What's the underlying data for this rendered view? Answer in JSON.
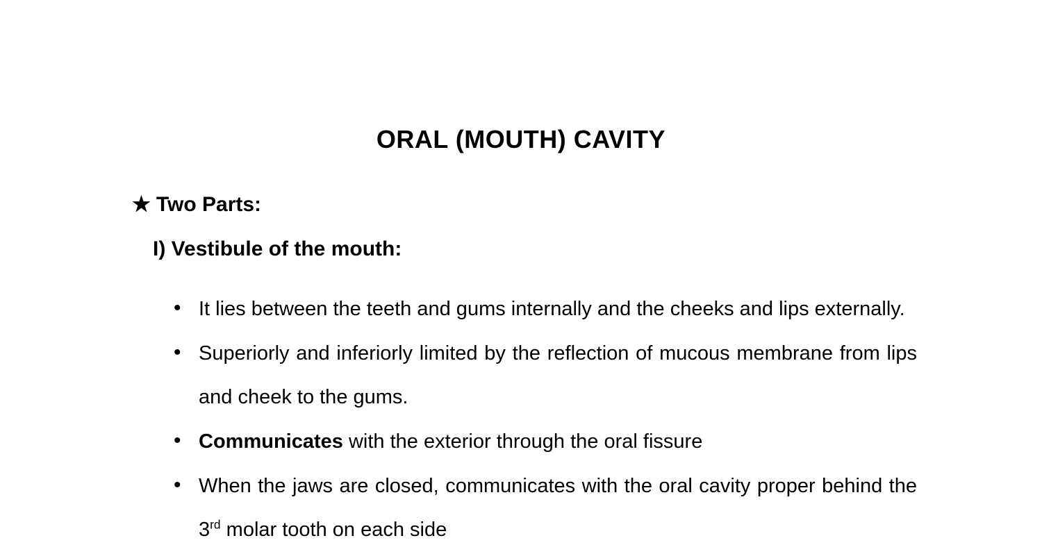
{
  "title": "ORAL (MOUTH) CAVITY",
  "star_label": "Two Parts:",
  "section_heading": "I) Vestibule of the mouth:",
  "bullets": {
    "b1": "It lies between the teeth and gums internally and the cheeks and lips externally.",
    "b2": " Superiorly and inferiorly limited by the reflection of mucous membrane from lips and cheek to the gums.",
    "b3_bold": "Communicates",
    "b3_rest": " with the exterior through the oral fissure",
    "b4_pre": "When the jaws are closed, communicates with the oral cavity proper behind the 3",
    "b4_sup": "rd",
    "b4_post": " molar tooth on each side"
  },
  "colors": {
    "text": "#000000",
    "background": "#ffffff"
  },
  "fontsizes": {
    "title": 36,
    "heading": 30,
    "body": 29
  }
}
